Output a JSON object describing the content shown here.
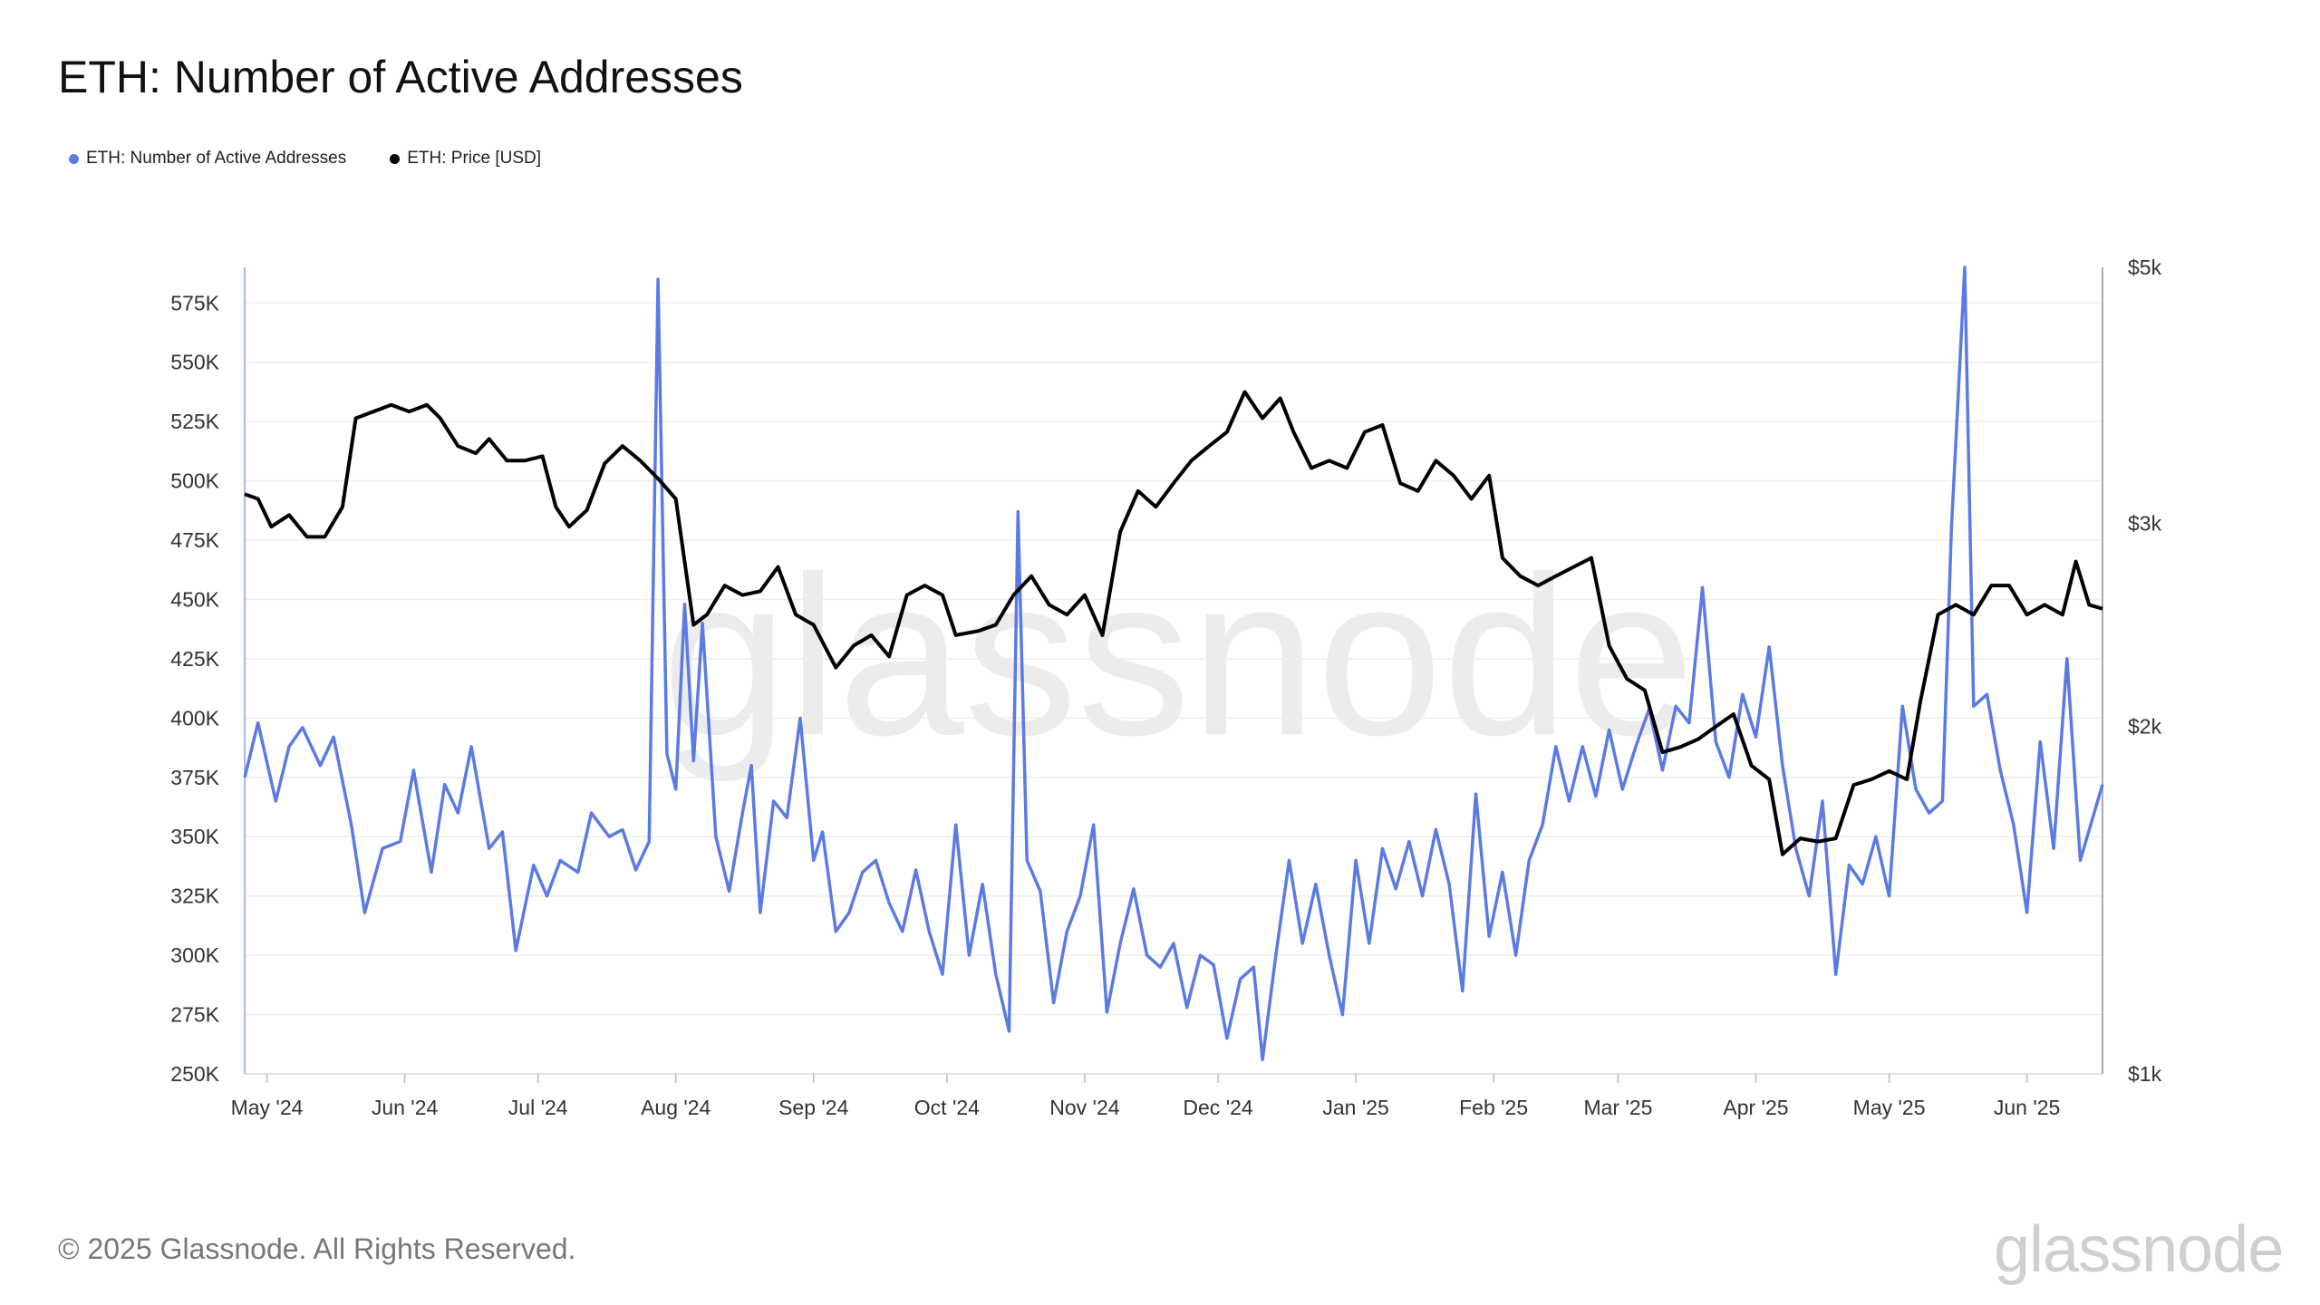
{
  "title": "ETH: Number of Active Addresses",
  "legend": [
    {
      "label": "ETH: Number of Active Addresses",
      "color": "#5b7be4"
    },
    {
      "label": "ETH: Price [USD]",
      "color": "#000000"
    }
  ],
  "footer": "© 2025 Glassnode. All Rights Reserved.",
  "brand": "glassnode",
  "watermark": "glassnode",
  "chart_data": {
    "type": "line",
    "x_range": [
      "2024-04-26",
      "2025-06-18"
    ],
    "x_ticks": [
      "May '24",
      "Jun '24",
      "Jul '24",
      "Aug '24",
      "Sep '24",
      "Oct '24",
      "Nov '24",
      "Dec '24",
      "Jan '25",
      "Feb '25",
      "Mar '25",
      "Apr '25",
      "May '25",
      "Jun '25"
    ],
    "y_left": {
      "ticks": [
        "250K",
        "275K",
        "300K",
        "325K",
        "350K",
        "375K",
        "400K",
        "425K",
        "450K",
        "475K",
        "500K",
        "525K",
        "550K",
        "575K"
      ],
      "range": [
        250000,
        590000
      ]
    },
    "y_right": {
      "ticks": [
        "$1k",
        "$2k",
        "$3k",
        "$5k"
      ],
      "scale": "log",
      "range": [
        1000,
        5000
      ]
    },
    "series": [
      {
        "name": "ETH: Number of Active Addresses",
        "axis": "left",
        "color": "#5b7be4",
        "points": [
          [
            "2024-04-26",
            375000
          ],
          [
            "2024-04-29",
            398000
          ],
          [
            "2024-05-03",
            365000
          ],
          [
            "2024-05-06",
            388000
          ],
          [
            "2024-05-09",
            396000
          ],
          [
            "2024-05-13",
            380000
          ],
          [
            "2024-05-16",
            392000
          ],
          [
            "2024-05-20",
            355000
          ],
          [
            "2024-05-23",
            318000
          ],
          [
            "2024-05-27",
            345000
          ],
          [
            "2024-05-31",
            348000
          ],
          [
            "2024-06-03",
            378000
          ],
          [
            "2024-06-07",
            335000
          ],
          [
            "2024-06-10",
            372000
          ],
          [
            "2024-06-13",
            360000
          ],
          [
            "2024-06-16",
            388000
          ],
          [
            "2024-06-20",
            345000
          ],
          [
            "2024-06-23",
            352000
          ],
          [
            "2024-06-26",
            302000
          ],
          [
            "2024-06-30",
            338000
          ],
          [
            "2024-07-03",
            325000
          ],
          [
            "2024-07-06",
            340000
          ],
          [
            "2024-07-10",
            335000
          ],
          [
            "2024-07-13",
            360000
          ],
          [
            "2024-07-17",
            350000
          ],
          [
            "2024-07-20",
            353000
          ],
          [
            "2024-07-23",
            336000
          ],
          [
            "2024-07-26",
            348000
          ],
          [
            "2024-07-28",
            585000
          ],
          [
            "2024-07-30",
            385000
          ],
          [
            "2024-08-01",
            370000
          ],
          [
            "2024-08-03",
            448000
          ],
          [
            "2024-08-05",
            382000
          ],
          [
            "2024-08-07",
            440000
          ],
          [
            "2024-08-10",
            350000
          ],
          [
            "2024-08-13",
            327000
          ],
          [
            "2024-08-16",
            360000
          ],
          [
            "2024-08-18",
            380000
          ],
          [
            "2024-08-20",
            318000
          ],
          [
            "2024-08-23",
            365000
          ],
          [
            "2024-08-26",
            358000
          ],
          [
            "2024-08-29",
            400000
          ],
          [
            "2024-09-01",
            340000
          ],
          [
            "2024-09-03",
            352000
          ],
          [
            "2024-09-06",
            310000
          ],
          [
            "2024-09-09",
            318000
          ],
          [
            "2024-09-12",
            335000
          ],
          [
            "2024-09-15",
            340000
          ],
          [
            "2024-09-18",
            322000
          ],
          [
            "2024-09-21",
            310000
          ],
          [
            "2024-09-24",
            336000
          ],
          [
            "2024-09-27",
            310000
          ],
          [
            "2024-09-30",
            292000
          ],
          [
            "2024-10-03",
            355000
          ],
          [
            "2024-10-06",
            300000
          ],
          [
            "2024-10-09",
            330000
          ],
          [
            "2024-10-12",
            292000
          ],
          [
            "2024-10-15",
            268000
          ],
          [
            "2024-10-17",
            487000
          ],
          [
            "2024-10-19",
            340000
          ],
          [
            "2024-10-22",
            327000
          ],
          [
            "2024-10-25",
            280000
          ],
          [
            "2024-10-28",
            310000
          ],
          [
            "2024-10-31",
            325000
          ],
          [
            "2024-11-03",
            355000
          ],
          [
            "2024-11-06",
            276000
          ],
          [
            "2024-11-09",
            305000
          ],
          [
            "2024-11-12",
            328000
          ],
          [
            "2024-11-15",
            300000
          ],
          [
            "2024-11-18",
            295000
          ],
          [
            "2024-11-21",
            305000
          ],
          [
            "2024-11-24",
            278000
          ],
          [
            "2024-11-27",
            300000
          ],
          [
            "2024-11-30",
            296000
          ],
          [
            "2024-12-03",
            265000
          ],
          [
            "2024-12-06",
            290000
          ],
          [
            "2024-12-09",
            295000
          ],
          [
            "2024-12-11",
            256000
          ],
          [
            "2024-12-14",
            300000
          ],
          [
            "2024-12-17",
            340000
          ],
          [
            "2024-12-20",
            305000
          ],
          [
            "2024-12-23",
            330000
          ],
          [
            "2024-12-26",
            300000
          ],
          [
            "2024-12-29",
            275000
          ],
          [
            "2025-01-01",
            340000
          ],
          [
            "2025-01-04",
            305000
          ],
          [
            "2025-01-07",
            345000
          ],
          [
            "2025-01-10",
            328000
          ],
          [
            "2025-01-13",
            348000
          ],
          [
            "2025-01-16",
            325000
          ],
          [
            "2025-01-19",
            353000
          ],
          [
            "2025-01-22",
            330000
          ],
          [
            "2025-01-25",
            285000
          ],
          [
            "2025-01-28",
            368000
          ],
          [
            "2025-01-31",
            308000
          ],
          [
            "2025-02-03",
            335000
          ],
          [
            "2025-02-06",
            300000
          ],
          [
            "2025-02-09",
            340000
          ],
          [
            "2025-02-12",
            355000
          ],
          [
            "2025-02-15",
            388000
          ],
          [
            "2025-02-18",
            365000
          ],
          [
            "2025-02-21",
            388000
          ],
          [
            "2025-02-24",
            367000
          ],
          [
            "2025-02-27",
            395000
          ],
          [
            "2025-03-02",
            370000
          ],
          [
            "2025-03-05",
            388000
          ],
          [
            "2025-03-08",
            404000
          ],
          [
            "2025-03-11",
            378000
          ],
          [
            "2025-03-14",
            405000
          ],
          [
            "2025-03-17",
            398000
          ],
          [
            "2025-03-20",
            455000
          ],
          [
            "2025-03-23",
            390000
          ],
          [
            "2025-03-26",
            375000
          ],
          [
            "2025-03-29",
            410000
          ],
          [
            "2025-04-01",
            392000
          ],
          [
            "2025-04-04",
            430000
          ],
          [
            "2025-04-07",
            380000
          ],
          [
            "2025-04-10",
            345000
          ],
          [
            "2025-04-13",
            325000
          ],
          [
            "2025-04-16",
            365000
          ],
          [
            "2025-04-19",
            292000
          ],
          [
            "2025-04-22",
            338000
          ],
          [
            "2025-04-25",
            330000
          ],
          [
            "2025-04-28",
            350000
          ],
          [
            "2025-05-01",
            325000
          ],
          [
            "2025-05-04",
            405000
          ],
          [
            "2025-05-07",
            370000
          ],
          [
            "2025-05-10",
            360000
          ],
          [
            "2025-05-13",
            365000
          ],
          [
            "2025-05-15",
            480000
          ],
          [
            "2025-05-18",
            590000
          ],
          [
            "2025-05-20",
            405000
          ],
          [
            "2025-05-23",
            410000
          ],
          [
            "2025-05-26",
            378000
          ],
          [
            "2025-05-29",
            355000
          ],
          [
            "2025-06-01",
            318000
          ],
          [
            "2025-06-04",
            390000
          ],
          [
            "2025-06-07",
            345000
          ],
          [
            "2025-06-10",
            425000
          ],
          [
            "2025-06-13",
            340000
          ],
          [
            "2025-06-18",
            372000
          ]
        ]
      },
      {
        "name": "ETH: Price [USD]",
        "axis": "right",
        "color": "#000000",
        "points": [
          [
            "2024-04-26",
            3180
          ],
          [
            "2024-04-29",
            3150
          ],
          [
            "2024-05-02",
            2980
          ],
          [
            "2024-05-06",
            3050
          ],
          [
            "2024-05-10",
            2920
          ],
          [
            "2024-05-14",
            2920
          ],
          [
            "2024-05-18",
            3100
          ],
          [
            "2024-05-21",
            3700
          ],
          [
            "2024-05-25",
            3750
          ],
          [
            "2024-05-29",
            3800
          ],
          [
            "2024-06-02",
            3750
          ],
          [
            "2024-06-06",
            3800
          ],
          [
            "2024-06-09",
            3700
          ],
          [
            "2024-06-13",
            3500
          ],
          [
            "2024-06-17",
            3450
          ],
          [
            "2024-06-20",
            3550
          ],
          [
            "2024-06-24",
            3400
          ],
          [
            "2024-06-28",
            3400
          ],
          [
            "2024-07-02",
            3430
          ],
          [
            "2024-07-05",
            3100
          ],
          [
            "2024-07-08",
            2980
          ],
          [
            "2024-07-12",
            3080
          ],
          [
            "2024-07-16",
            3380
          ],
          [
            "2024-07-20",
            3500
          ],
          [
            "2024-07-24",
            3400
          ],
          [
            "2024-07-28",
            3280
          ],
          [
            "2024-08-01",
            3150
          ],
          [
            "2024-08-05",
            2450
          ],
          [
            "2024-08-08",
            2500
          ],
          [
            "2024-08-12",
            2650
          ],
          [
            "2024-08-16",
            2600
          ],
          [
            "2024-08-20",
            2620
          ],
          [
            "2024-08-24",
            2750
          ],
          [
            "2024-08-28",
            2500
          ],
          [
            "2024-09-01",
            2450
          ],
          [
            "2024-09-06",
            2250
          ],
          [
            "2024-09-10",
            2350
          ],
          [
            "2024-09-14",
            2400
          ],
          [
            "2024-09-18",
            2300
          ],
          [
            "2024-09-22",
            2600
          ],
          [
            "2024-09-26",
            2650
          ],
          [
            "2024-09-30",
            2600
          ],
          [
            "2024-10-03",
            2400
          ],
          [
            "2024-10-08",
            2420
          ],
          [
            "2024-10-12",
            2450
          ],
          [
            "2024-10-16",
            2600
          ],
          [
            "2024-10-20",
            2700
          ],
          [
            "2024-10-24",
            2550
          ],
          [
            "2024-10-28",
            2500
          ],
          [
            "2024-11-01",
            2600
          ],
          [
            "2024-11-05",
            2400
          ],
          [
            "2024-11-09",
            2950
          ],
          [
            "2024-11-13",
            3200
          ],
          [
            "2024-11-17",
            3100
          ],
          [
            "2024-11-21",
            3250
          ],
          [
            "2024-11-25",
            3400
          ],
          [
            "2024-11-29",
            3500
          ],
          [
            "2024-12-03",
            3600
          ],
          [
            "2024-12-07",
            3900
          ],
          [
            "2024-12-11",
            3700
          ],
          [
            "2024-12-15",
            3850
          ],
          [
            "2024-12-18",
            3600
          ],
          [
            "2024-12-22",
            3350
          ],
          [
            "2024-12-26",
            3400
          ],
          [
            "2024-12-30",
            3350
          ],
          [
            "2025-01-03",
            3600
          ],
          [
            "2025-01-07",
            3650
          ],
          [
            "2025-01-11",
            3250
          ],
          [
            "2025-01-15",
            3200
          ],
          [
            "2025-01-19",
            3400
          ],
          [
            "2025-01-23",
            3300
          ],
          [
            "2025-01-27",
            3150
          ],
          [
            "2025-01-31",
            3300
          ],
          [
            "2025-02-03",
            2800
          ],
          [
            "2025-02-07",
            2700
          ],
          [
            "2025-02-11",
            2650
          ],
          [
            "2025-02-15",
            2700
          ],
          [
            "2025-02-19",
            2750
          ],
          [
            "2025-02-23",
            2800
          ],
          [
            "2025-02-27",
            2350
          ],
          [
            "2025-03-03",
            2200
          ],
          [
            "2025-03-07",
            2150
          ],
          [
            "2025-03-11",
            1900
          ],
          [
            "2025-03-15",
            1920
          ],
          [
            "2025-03-19",
            1950
          ],
          [
            "2025-03-23",
            2000
          ],
          [
            "2025-03-27",
            2050
          ],
          [
            "2025-03-31",
            1850
          ],
          [
            "2025-04-04",
            1800
          ],
          [
            "2025-04-07",
            1550
          ],
          [
            "2025-04-11",
            1600
          ],
          [
            "2025-04-15",
            1590
          ],
          [
            "2025-04-19",
            1600
          ],
          [
            "2025-04-23",
            1780
          ],
          [
            "2025-04-27",
            1800
          ],
          [
            "2025-05-01",
            1830
          ],
          [
            "2025-05-05",
            1800
          ],
          [
            "2025-05-08",
            2100
          ],
          [
            "2025-05-12",
            2500
          ],
          [
            "2025-05-16",
            2550
          ],
          [
            "2025-05-20",
            2500
          ],
          [
            "2025-05-24",
            2650
          ],
          [
            "2025-05-28",
            2650
          ],
          [
            "2025-06-01",
            2500
          ],
          [
            "2025-06-05",
            2550
          ],
          [
            "2025-06-09",
            2500
          ],
          [
            "2025-06-12",
            2780
          ],
          [
            "2025-06-15",
            2550
          ],
          [
            "2025-06-18",
            2530
          ]
        ]
      }
    ],
    "grid": "horizontal"
  }
}
